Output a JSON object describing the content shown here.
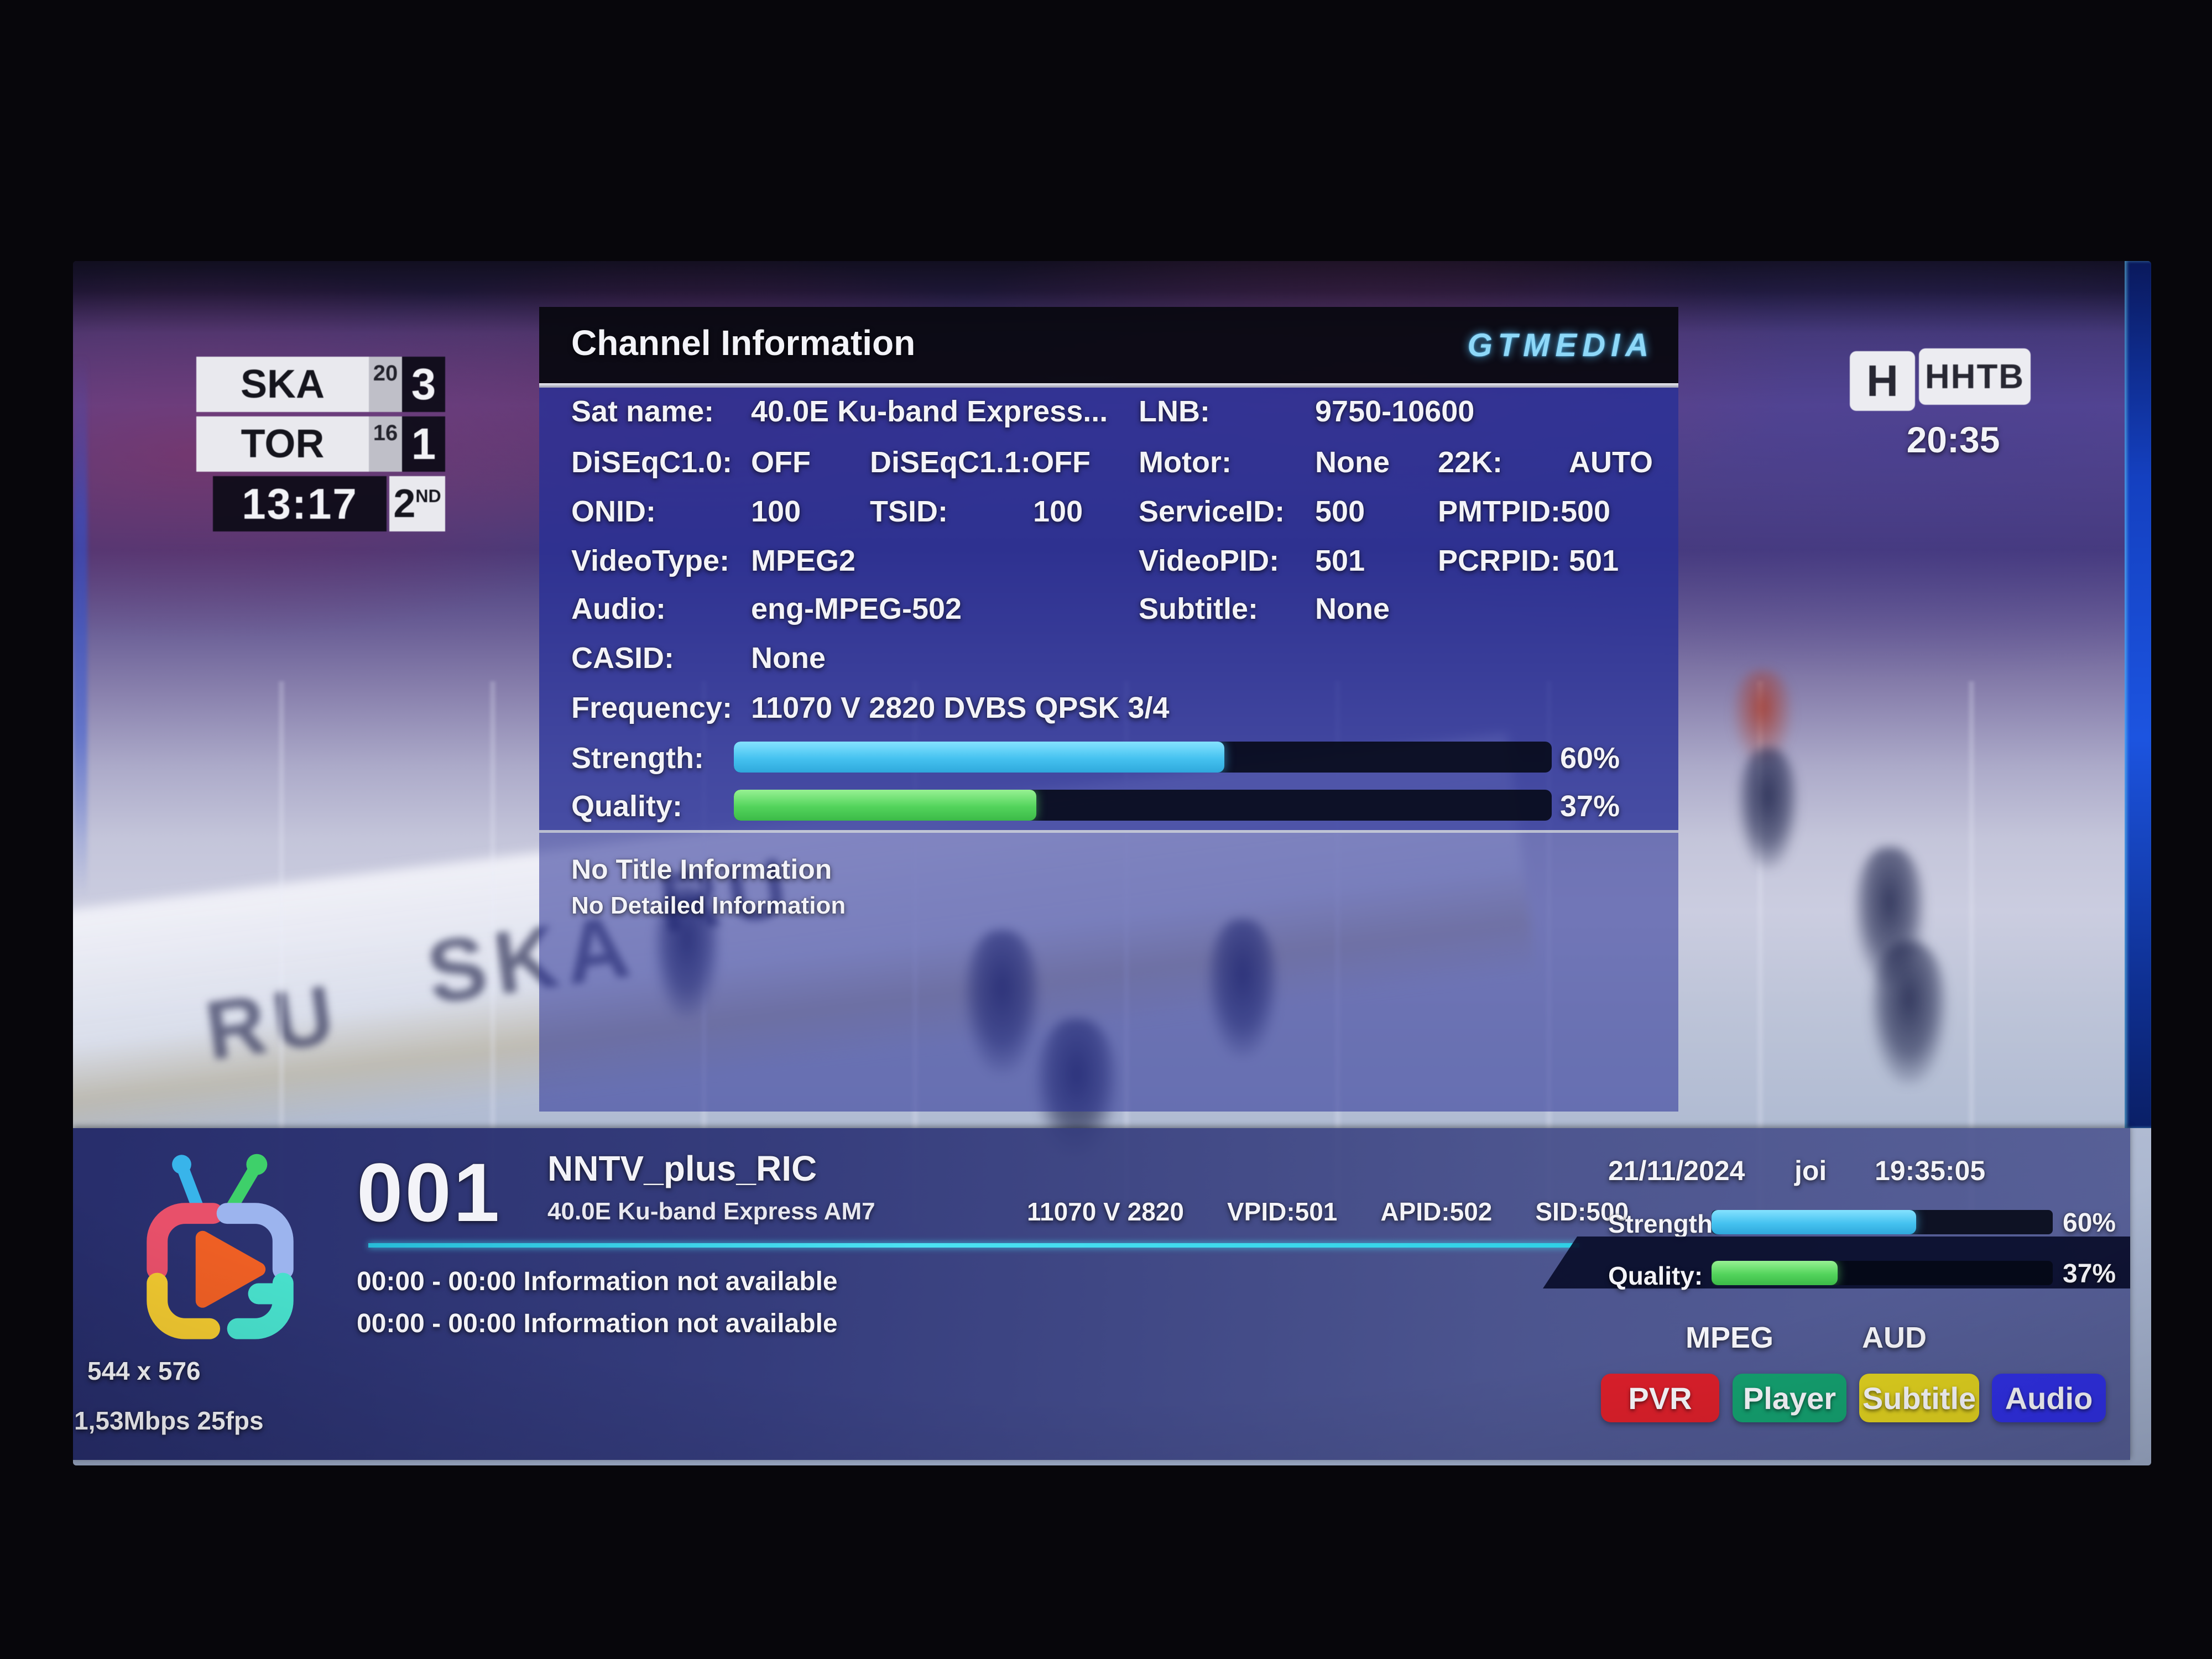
{
  "scoreboard": {
    "team1": {
      "name": "SKA",
      "shots": "20",
      "score": "3"
    },
    "team2": {
      "name": "TOR",
      "shots": "16",
      "score": "1"
    },
    "clock": "13:17",
    "period": "2",
    "period_suffix": "ND"
  },
  "broadcaster": {
    "logo_letter": "Н",
    "logo_name": "ННТВ",
    "time": "20:35"
  },
  "video": {
    "boards_text_left": "RU",
    "boards_text_center": "SKA",
    "boards_text_right": "RU"
  },
  "info_panel": {
    "title": "Channel Information",
    "brand": "GTMEDIA",
    "rows": {
      "sat_name_label": "Sat name:",
      "sat_name_value": "40.0E Ku-band Express...",
      "lnb_label": "LNB:",
      "lnb_value": "9750-10600",
      "diseqc10_label": "DiSEqC1.0:",
      "diseqc10_value": "OFF",
      "diseqc11_combined": "DiSEqC1.1:OFF",
      "motor_label": "Motor:",
      "motor_value": "None",
      "k22_label": "22K:",
      "k22_value": "AUTO",
      "onid_label": "ONID:",
      "onid_value": "100",
      "tsid_label": "TSID:",
      "tsid_value": "100",
      "serviceid_label": "ServiceID:",
      "serviceid_value": "500",
      "pmtpid_combined": "PMTPID:500",
      "videotype_label": "VideoType:",
      "videotype_value": "MPEG2",
      "videopid_label": "VideoPID:",
      "videopid_value": "501",
      "pcrpid_label": "PCRPID:",
      "pcrpid_value": "501",
      "audio_label": "Audio:",
      "audio_value": "eng-MPEG-502",
      "subtitle_label": "Subtitle:",
      "subtitle_value": "None",
      "casid_label": "CASID:",
      "casid_value": "None",
      "frequency_label": "Frequency:",
      "frequency_value": "11070 V 2820  DVBS QPSK 3/4"
    },
    "strength": {
      "label": "Strength:",
      "percent": 60,
      "text": "60%"
    },
    "quality": {
      "label": "Quality:",
      "percent": 37,
      "text": "37%"
    },
    "no_title": "No Title Information",
    "no_detail": "No Detailed Information"
  },
  "info_bar": {
    "channel_number": "001",
    "channel_name": "NNTV_plus_RIC",
    "satellite": "40.0E Ku-band Express AM7",
    "transponder": "11070 V 2820",
    "vpid": "VPID:501",
    "apid": "APID:502",
    "sid": "SID:500",
    "epg1": "00:00 - 00:00 Information not available",
    "epg2": "00:00 - 00:00 Information not available",
    "resolution": "544 x 576",
    "bitrate": "1,53Mbps 25fps",
    "date": "21/11/2024",
    "day": "joi",
    "time": "19:35:05",
    "strength": {
      "label": "Strength:",
      "percent": 60,
      "text": "60%"
    },
    "quality": {
      "label": "Quality:",
      "percent": 37,
      "text": "37%"
    },
    "codec_video": "MPEG",
    "codec_audio": "AUD",
    "buttons": [
      {
        "label": "PVR",
        "color": "#d81f2a"
      },
      {
        "label": "Player",
        "color": "#149e6e"
      },
      {
        "label": "Subtitle",
        "color": "#ddce1f"
      },
      {
        "label": "Audio",
        "color": "#2f2fe0"
      }
    ]
  },
  "colors": {
    "strength_fill": "#45c2f0",
    "quality_fill": "#53d45c",
    "panel_blue": "#282f96",
    "brand_cyan": "#8ed8f8"
  }
}
